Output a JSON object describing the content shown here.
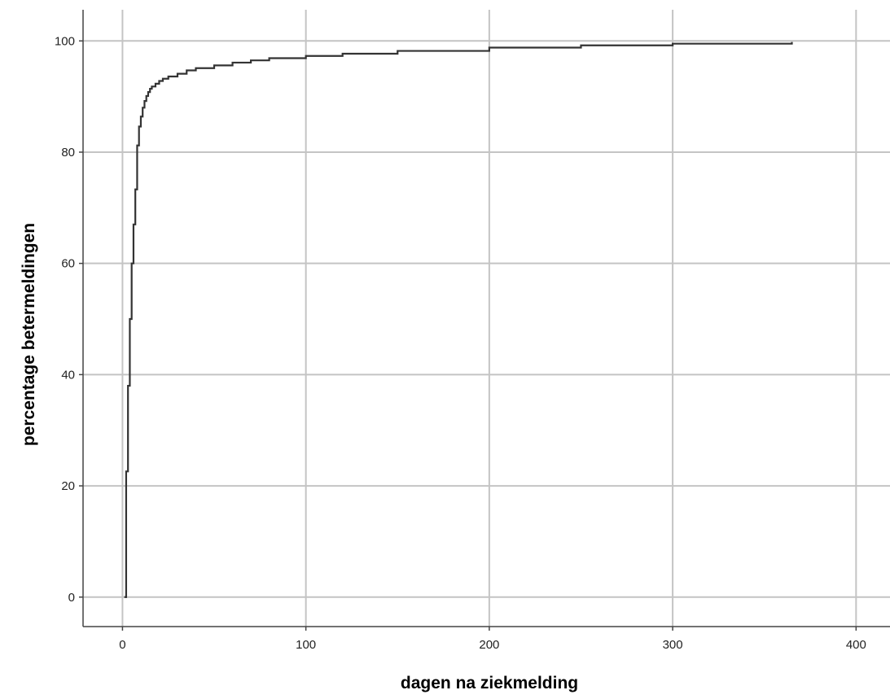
{
  "chart_data": {
    "type": "line",
    "title": "",
    "xlabel": "dagen na ziekmelding",
    "ylabel": "percentage betermeldingen",
    "xlim": [
      -21.5,
      418.5
    ],
    "ylim": [
      -5.3,
      105.6
    ],
    "xticks": [
      0,
      100,
      200,
      300,
      400
    ],
    "yticks": [
      0,
      20,
      40,
      60,
      80,
      100
    ],
    "grid": true,
    "step": true,
    "colors": {
      "line": "#333333",
      "grid": "#c4c4c4",
      "axis": "#444444"
    },
    "series": [
      {
        "x": [
          1,
          2,
          3,
          4,
          5,
          6,
          7,
          8,
          9,
          10,
          11,
          12,
          13,
          14,
          15,
          16,
          18,
          20,
          22,
          25,
          30,
          35,
          40,
          50,
          60,
          70,
          80,
          100,
          120,
          150,
          200,
          250,
          300,
          365
        ],
        "y": [
          0,
          22.6,
          38,
          50,
          60,
          67,
          73.3,
          81.2,
          84.6,
          86.4,
          88,
          89.2,
          90.1,
          90.8,
          91.4,
          91.8,
          92.3,
          92.8,
          93.2,
          93.6,
          94.1,
          94.7,
          95.1,
          95.6,
          96.1,
          96.5,
          96.9,
          97.3,
          97.7,
          98.2,
          98.8,
          99.2,
          99.5,
          99.8
        ]
      }
    ]
  }
}
